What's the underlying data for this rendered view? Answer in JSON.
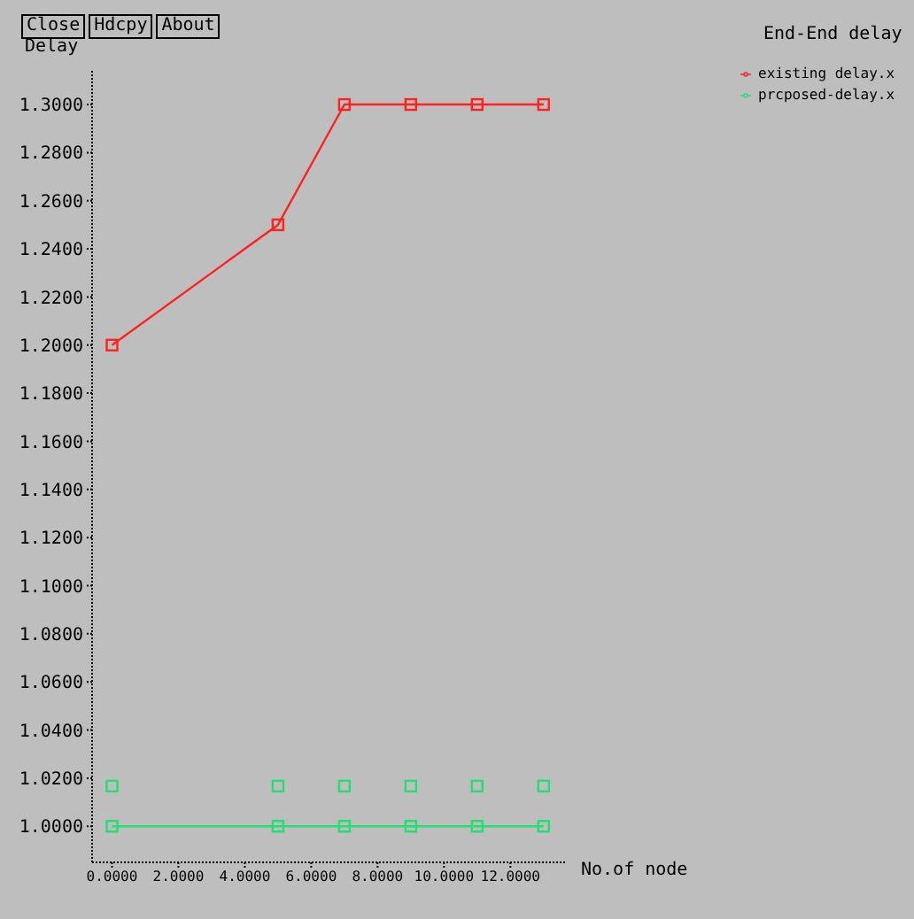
{
  "chart_data": {
    "type": "line",
    "title": "End-End delay",
    "ylabel": "Delay",
    "xlabel": "No.of node",
    "annotations": [
      "Close",
      "Hdcpy",
      "About"
    ],
    "x": [
      0,
      5,
      7,
      9,
      11,
      13
    ],
    "series": [
      {
        "name": "existing delay.x",
        "color": "#ff2020",
        "values": [
          1.2,
          1.25,
          1.3,
          1.3,
          1.3,
          1.3
        ]
      },
      {
        "name": "prcposed-delay.x",
        "color": "#20e070",
        "values": [
          1.0,
          1.0,
          1.0,
          1.0,
          1.0,
          1.0
        ]
      },
      {
        "type": "scatter",
        "color": "#20e070",
        "values": [
          1.0167,
          1.0167,
          1.0167,
          1.0167,
          1.0167,
          1.0167
        ]
      }
    ],
    "xlim": [
      -0.6,
      13.7
    ],
    "ylim": [
      0.985,
      1.314
    ],
    "xticks": [
      {
        "value": 0,
        "label": "0.0000"
      },
      {
        "value": 2,
        "label": "2.0000"
      },
      {
        "value": 4,
        "label": "4.0000"
      },
      {
        "value": 6,
        "label": "6.0000"
      },
      {
        "value": 8,
        "label": "8.0000"
      },
      {
        "value": 10,
        "label": "10.0000"
      },
      {
        "value": 12,
        "label": "12.0000"
      }
    ],
    "yticks": [
      {
        "value": 1.0,
        "label": "1.0000"
      },
      {
        "value": 1.02,
        "label": "1.0200"
      },
      {
        "value": 1.04,
        "label": "1.0400"
      },
      {
        "value": 1.06,
        "label": "1.0600"
      },
      {
        "value": 1.08,
        "label": "1.0800"
      },
      {
        "value": 1.1,
        "label": "1.1000"
      },
      {
        "value": 1.12,
        "label": "1.1200"
      },
      {
        "value": 1.14,
        "label": "1.1400"
      },
      {
        "value": 1.16,
        "label": "1.1600"
      },
      {
        "value": 1.18,
        "label": "1.1800"
      },
      {
        "value": 1.2,
        "label": "1.2000"
      },
      {
        "value": 1.22,
        "label": "1.2200"
      },
      {
        "value": 1.24,
        "label": "1.2400"
      },
      {
        "value": 1.26,
        "label": "1.2600"
      },
      {
        "value": 1.28,
        "label": "1.2800"
      },
      {
        "value": 1.3,
        "label": "1.3000"
      }
    ],
    "grid": false,
    "legend": "top right",
    "marker": "square",
    "line_style": "solid"
  }
}
